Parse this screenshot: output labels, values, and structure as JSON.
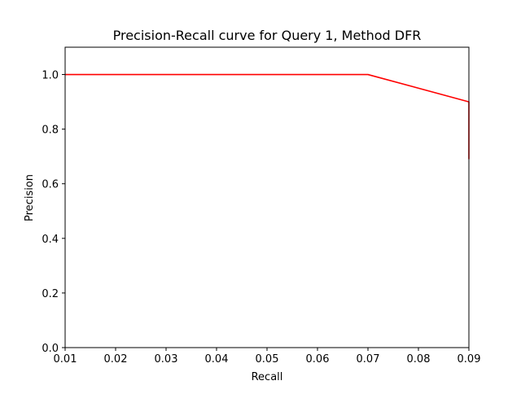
{
  "chart_data": {
    "type": "line",
    "title": "Precision-Recall curve for Query 1, Method DFR",
    "xlabel": "Recall",
    "ylabel": "Precision",
    "xlim": [
      0.01,
      0.09
    ],
    "ylim": [
      0.0,
      1.1
    ],
    "xticks": [
      0.01,
      0.02,
      0.03,
      0.04,
      0.05,
      0.06,
      0.07,
      0.08,
      0.09
    ],
    "xtick_labels": [
      "0.01",
      "0.02",
      "0.03",
      "0.04",
      "0.05",
      "0.06",
      "0.07",
      "0.08",
      "0.09"
    ],
    "yticks": [
      0.0,
      0.2,
      0.4,
      0.6,
      0.8,
      1.0
    ],
    "ytick_labels": [
      "0.0",
      "0.2",
      "0.4",
      "0.6",
      "0.8",
      "1.0"
    ],
    "grid": false,
    "legend": "none",
    "series": [
      {
        "color": "#ff0000",
        "x": [
          0.01,
          0.07,
          0.09,
          0.09
        ],
        "y": [
          1.0,
          1.0,
          0.9,
          0.69
        ]
      }
    ]
  }
}
